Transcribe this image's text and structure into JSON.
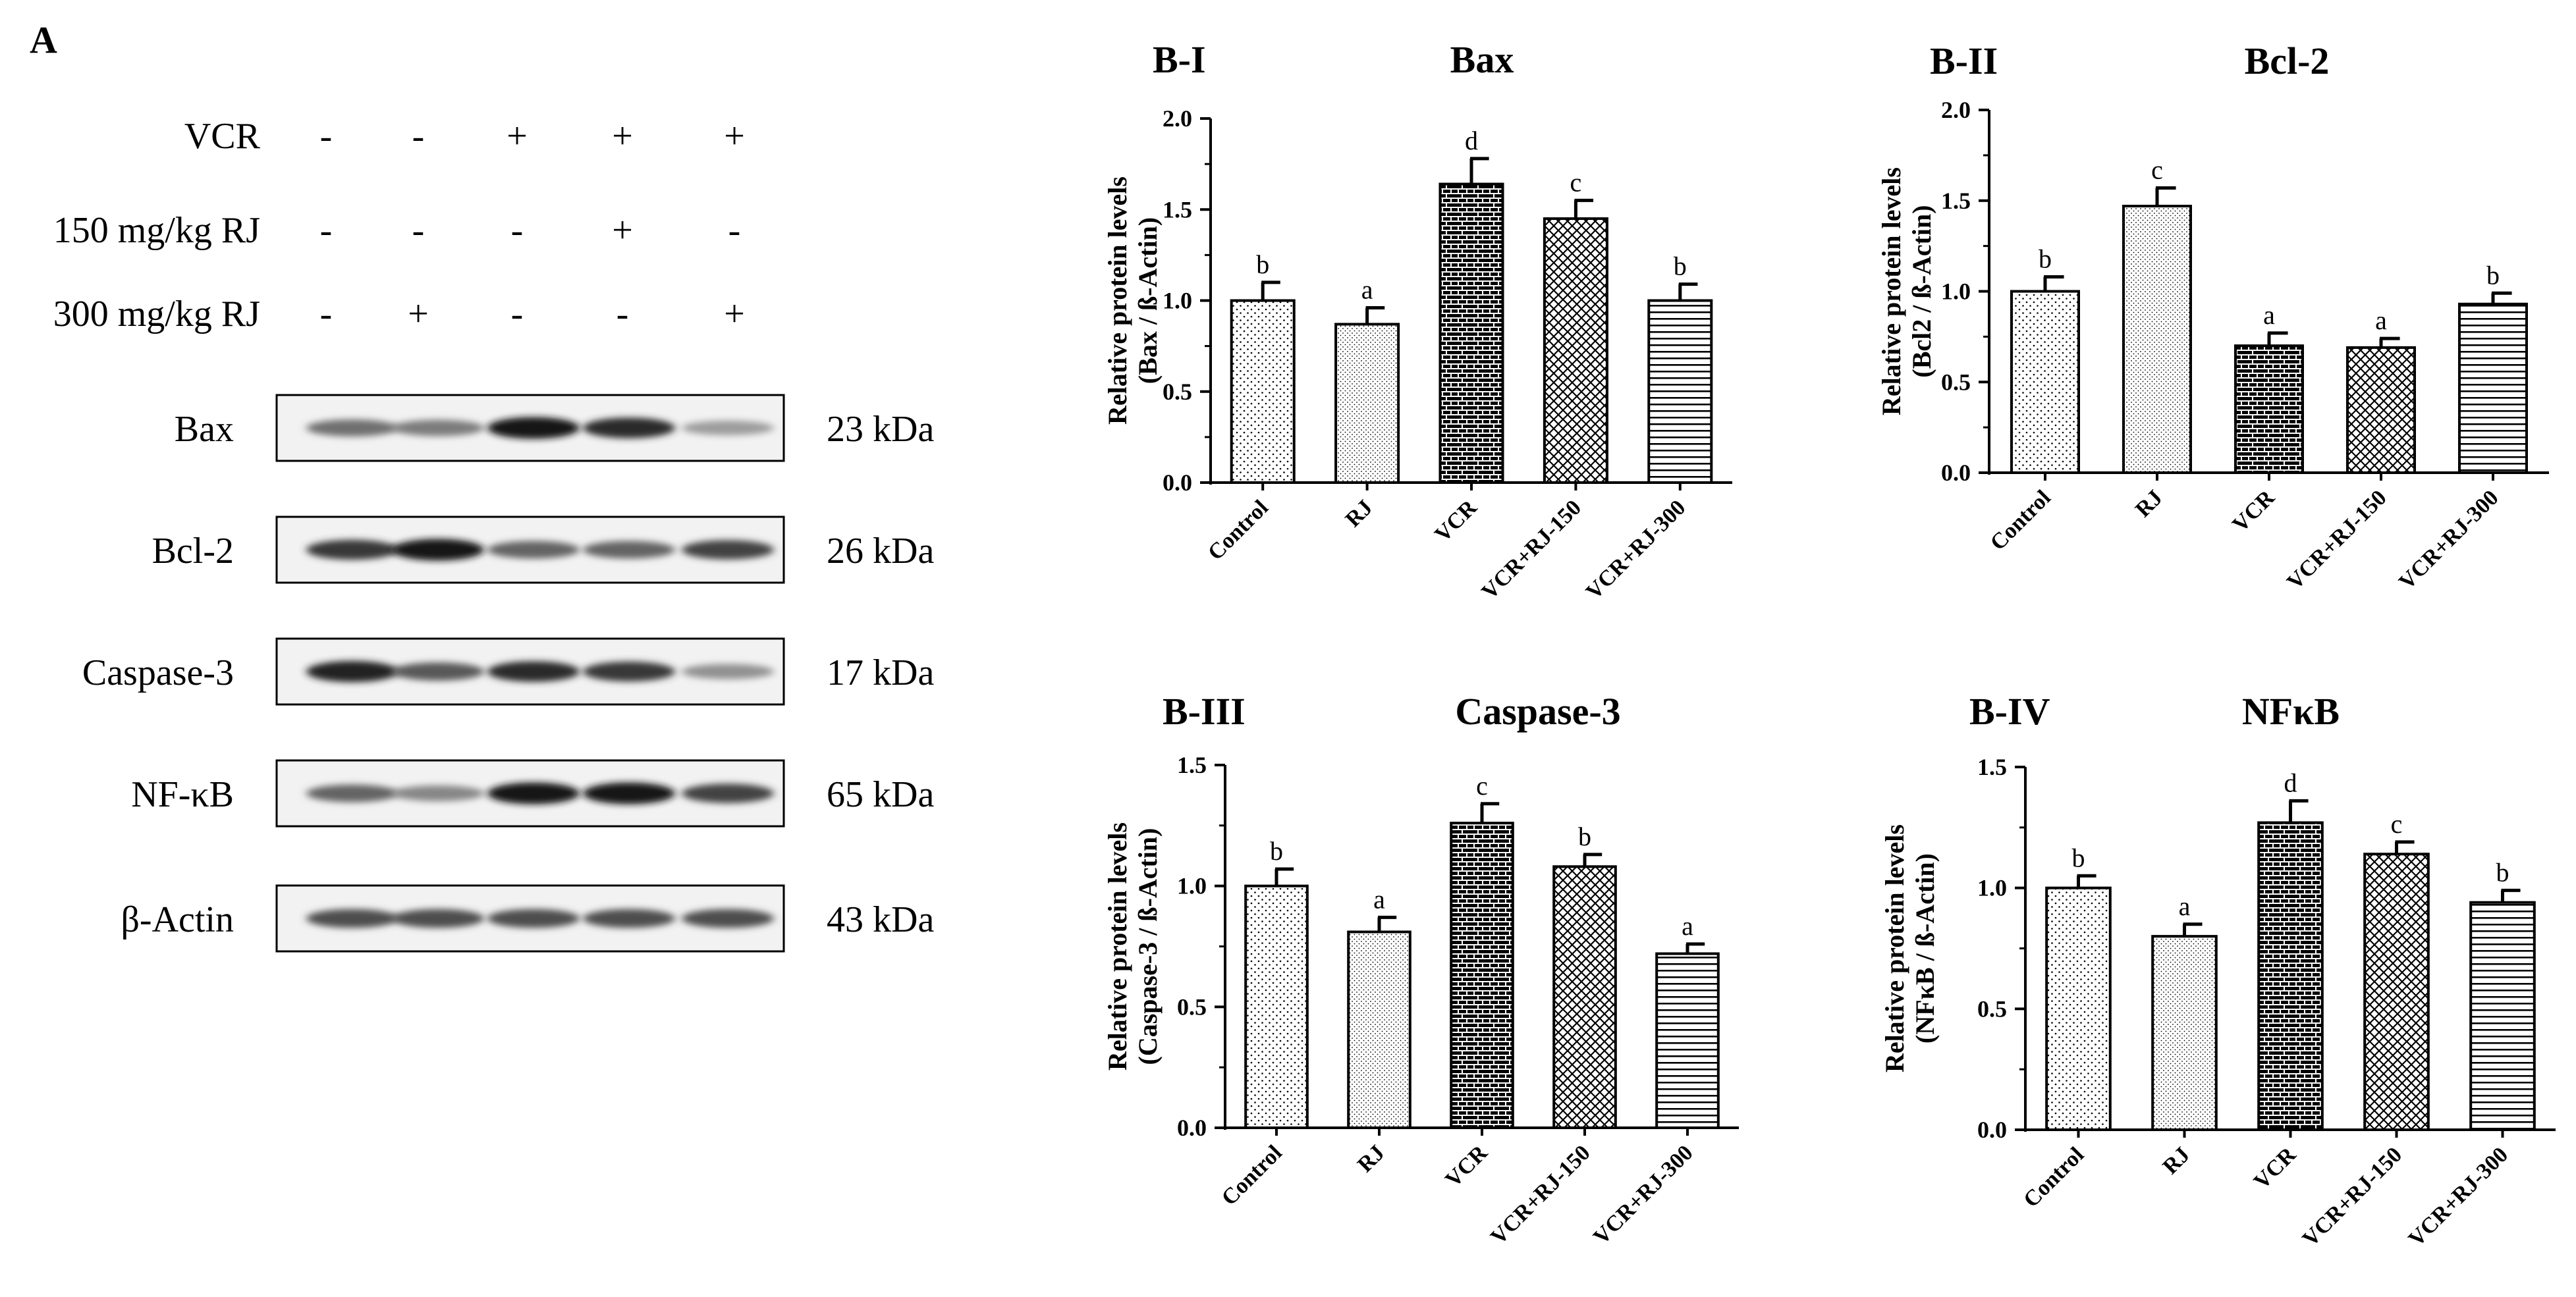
{
  "panel_a": {
    "label": "A",
    "treatments": [
      {
        "name": "VCR",
        "marks": [
          "-",
          "-",
          "+",
          "+",
          "+"
        ]
      },
      {
        "name": "150 mg/kg RJ",
        "marks": [
          "-",
          "-",
          "-",
          "+",
          "-"
        ]
      },
      {
        "name": "300 mg/kg RJ",
        "marks": [
          "-",
          "+",
          "-",
          "-",
          "+"
        ]
      }
    ],
    "blots": [
      {
        "protein": "Bax",
        "kda": "23 kDa",
        "intensities": [
          0.55,
          0.5,
          0.95,
          0.85,
          0.35
        ]
      },
      {
        "protein": "Bcl-2",
        "kda": "26 kDa",
        "intensities": [
          0.8,
          0.95,
          0.6,
          0.6,
          0.75
        ]
      },
      {
        "protein": "Caspase-3",
        "kda": "17 kDa",
        "intensities": [
          0.9,
          0.65,
          0.85,
          0.8,
          0.4
        ]
      },
      {
        "protein": "NF-κB",
        "kda": "65 kDa",
        "intensities": [
          0.6,
          0.45,
          0.95,
          0.95,
          0.75
        ]
      },
      {
        "protein": "β-Actin",
        "kda": "43 kDa",
        "intensities": [
          0.7,
          0.7,
          0.7,
          0.7,
          0.7
        ]
      }
    ]
  },
  "chart_data": [
    {
      "type": "bar",
      "panel": "B-I",
      "title": "Bax",
      "ylabel": [
        "Relative protein levels",
        "(Bax / ß-Actin)"
      ],
      "categories": [
        "Control",
        "RJ",
        "VCR",
        "VCR+RJ-150",
        "VCR+RJ-300"
      ],
      "values": [
        1.0,
        0.87,
        1.64,
        1.45,
        1.0
      ],
      "errors": [
        0.1,
        0.09,
        0.14,
        0.1,
        0.09
      ],
      "letters": [
        "b",
        "a",
        "d",
        "c",
        "b"
      ],
      "ylim": [
        0,
        2.0
      ],
      "yticks": [
        "0.0",
        "0.5",
        "1.0",
        "1.5",
        "2.0"
      ]
    },
    {
      "type": "bar",
      "panel": "B-II",
      "title": "Bcl-2",
      "ylabel": [
        "Relative protein levels",
        "(Bcl2 / ß-Actin)"
      ],
      "categories": [
        "Control",
        "RJ",
        "VCR",
        "VCR+RJ-150",
        "VCR+RJ-300"
      ],
      "values": [
        1.0,
        1.47,
        0.7,
        0.69,
        0.93
      ],
      "errors": [
        0.08,
        0.1,
        0.07,
        0.05,
        0.06
      ],
      "letters": [
        "b",
        "c",
        "a",
        "a",
        "b"
      ],
      "ylim": [
        0,
        2.0
      ],
      "yticks": [
        "0.0",
        "0.5",
        "1.0",
        "1.5",
        "2.0"
      ]
    },
    {
      "type": "bar",
      "panel": "B-III",
      "title": "Caspase-3",
      "ylabel": [
        "Relative protein levels",
        "(Caspase-3 / ß-Actin)"
      ],
      "categories": [
        "Control",
        "RJ",
        "VCR",
        "VCR+RJ-150",
        "VCR+RJ-300"
      ],
      "values": [
        1.0,
        0.81,
        1.26,
        1.08,
        0.72
      ],
      "errors": [
        0.07,
        0.06,
        0.08,
        0.05,
        0.04
      ],
      "letters": [
        "b",
        "a",
        "c",
        "b",
        "a"
      ],
      "ylim": [
        0,
        1.5
      ],
      "yticks": [
        "0.0",
        "0.5",
        "1.0",
        "1.5"
      ]
    },
    {
      "type": "bar",
      "panel": "B-IV",
      "title": "NFκB",
      "ylabel": [
        "Relative protein levels",
        "(NFκB / ß-Actin)"
      ],
      "categories": [
        "Control",
        "RJ",
        "VCR",
        "VCR+RJ-150",
        "VCR+RJ-300"
      ],
      "values": [
        1.0,
        0.8,
        1.27,
        1.14,
        0.94
      ],
      "errors": [
        0.05,
        0.05,
        0.09,
        0.05,
        0.05
      ],
      "letters": [
        "b",
        "a",
        "d",
        "c",
        "b"
      ],
      "ylim": [
        0,
        1.5
      ],
      "yticks": [
        "0.0",
        "0.5",
        "1.0",
        "1.5"
      ]
    }
  ]
}
